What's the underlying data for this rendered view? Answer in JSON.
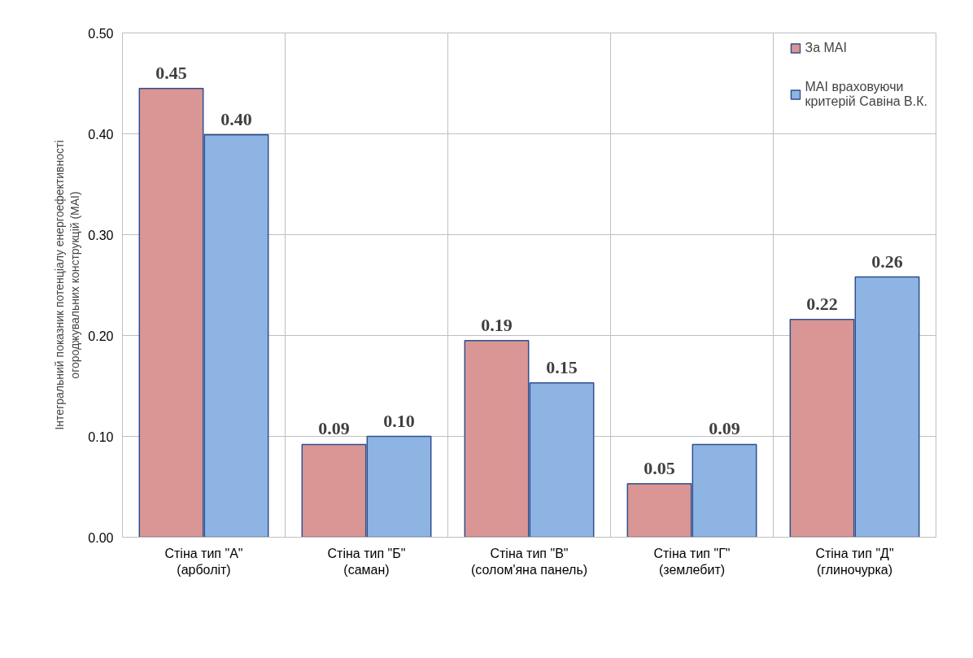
{
  "chart_data": {
    "type": "bar",
    "ylabel": "Інтегральний показник потенціалу енергоефективності\nогороджувальних конструкцій (МАІ)",
    "categories": [
      "Стіна тип \"А\"\n(арболіт)",
      "Стіна тип \"Б\"\n(саман)",
      "Стіна тип \"В\"\n(солом'яна панель)",
      "Стіна тип \"Г\"\n(землебит)",
      "Стіна тип \"Д\"\n(глиночурка)"
    ],
    "series": [
      {
        "name": "За МАІ",
        "color": "#d99694",
        "values": [
          0.445,
          0.092,
          0.195,
          0.053,
          0.216
        ],
        "value_labels": [
          "0.45",
          "0.09",
          "0.19",
          "0.05",
          "0.22"
        ]
      },
      {
        "name": "МАІ враховуючи\nкритерій Савіна В.К.",
        "color": "#8eb4e3",
        "values": [
          0.399,
          0.1,
          0.153,
          0.092,
          0.258
        ],
        "value_labels": [
          "0.40",
          "0.10",
          "0.15",
          "0.09",
          "0.26"
        ]
      }
    ],
    "ylim": [
      0,
      0.5
    ],
    "yticks": [
      {
        "value": 0,
        "label": "0.00"
      },
      {
        "value": 0.1,
        "label": "0.10"
      },
      {
        "value": 0.2,
        "label": "0.20"
      },
      {
        "value": 0.3,
        "label": "0.30"
      },
      {
        "value": 0.4,
        "label": "0.40"
      },
      {
        "value": 0.5,
        "label": "0.50"
      }
    ],
    "grid": true,
    "legend": "top right"
  }
}
